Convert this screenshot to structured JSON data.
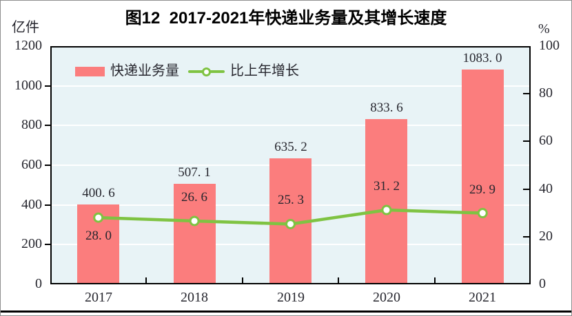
{
  "figure": {
    "title": "图12  2017-2021年快递业务量及其增长速度",
    "unit_left": "亿件",
    "unit_right": "%"
  },
  "legend": {
    "bar_label": "快递业务量",
    "line_label": "比上年增长"
  },
  "colors": {
    "bar": "#FB7D7D",
    "line": "#7FC342",
    "marker_fill": "#FFFFFF",
    "plot_bg": "#E8F3F6",
    "gridline": "#FFFFFF",
    "axis": "#000000",
    "text": "#26262E"
  },
  "chart_data": {
    "type": "bar",
    "subtype": "bar-line-combo",
    "title": "图12 2017-2021年快递业务量及其增长速度",
    "categories": [
      "2017",
      "2018",
      "2019",
      "2020",
      "2021"
    ],
    "series": [
      {
        "name": "快递业务量",
        "type": "bar",
        "axis": "left",
        "values": [
          400.6,
          507.1,
          635.2,
          833.6,
          1083.0
        ],
        "labels": [
          "400. 6",
          "507. 1",
          "635. 2",
          "833. 6",
          "1083. 0"
        ]
      },
      {
        "name": "比上年增长",
        "type": "line",
        "axis": "right",
        "values": [
          28.0,
          26.6,
          25.3,
          31.2,
          29.9
        ],
        "labels": [
          "28. 0",
          "26. 6",
          "25. 3",
          "31. 2",
          "29. 9"
        ],
        "label_position": [
          "below",
          "above",
          "above",
          "above",
          "above"
        ]
      }
    ],
    "left_axis": {
      "label": "亿件",
      "min": 0,
      "max": 1200,
      "step": 200,
      "ticks": [
        "0",
        "200",
        "400",
        "600",
        "800",
        "1000",
        "1200"
      ]
    },
    "right_axis": {
      "label": "%",
      "min": 0,
      "max": 100,
      "step": 20,
      "ticks": [
        "0",
        "20",
        "40",
        "60",
        "80",
        "100"
      ]
    },
    "grid": true,
    "legend_position": "top-left-inside"
  }
}
